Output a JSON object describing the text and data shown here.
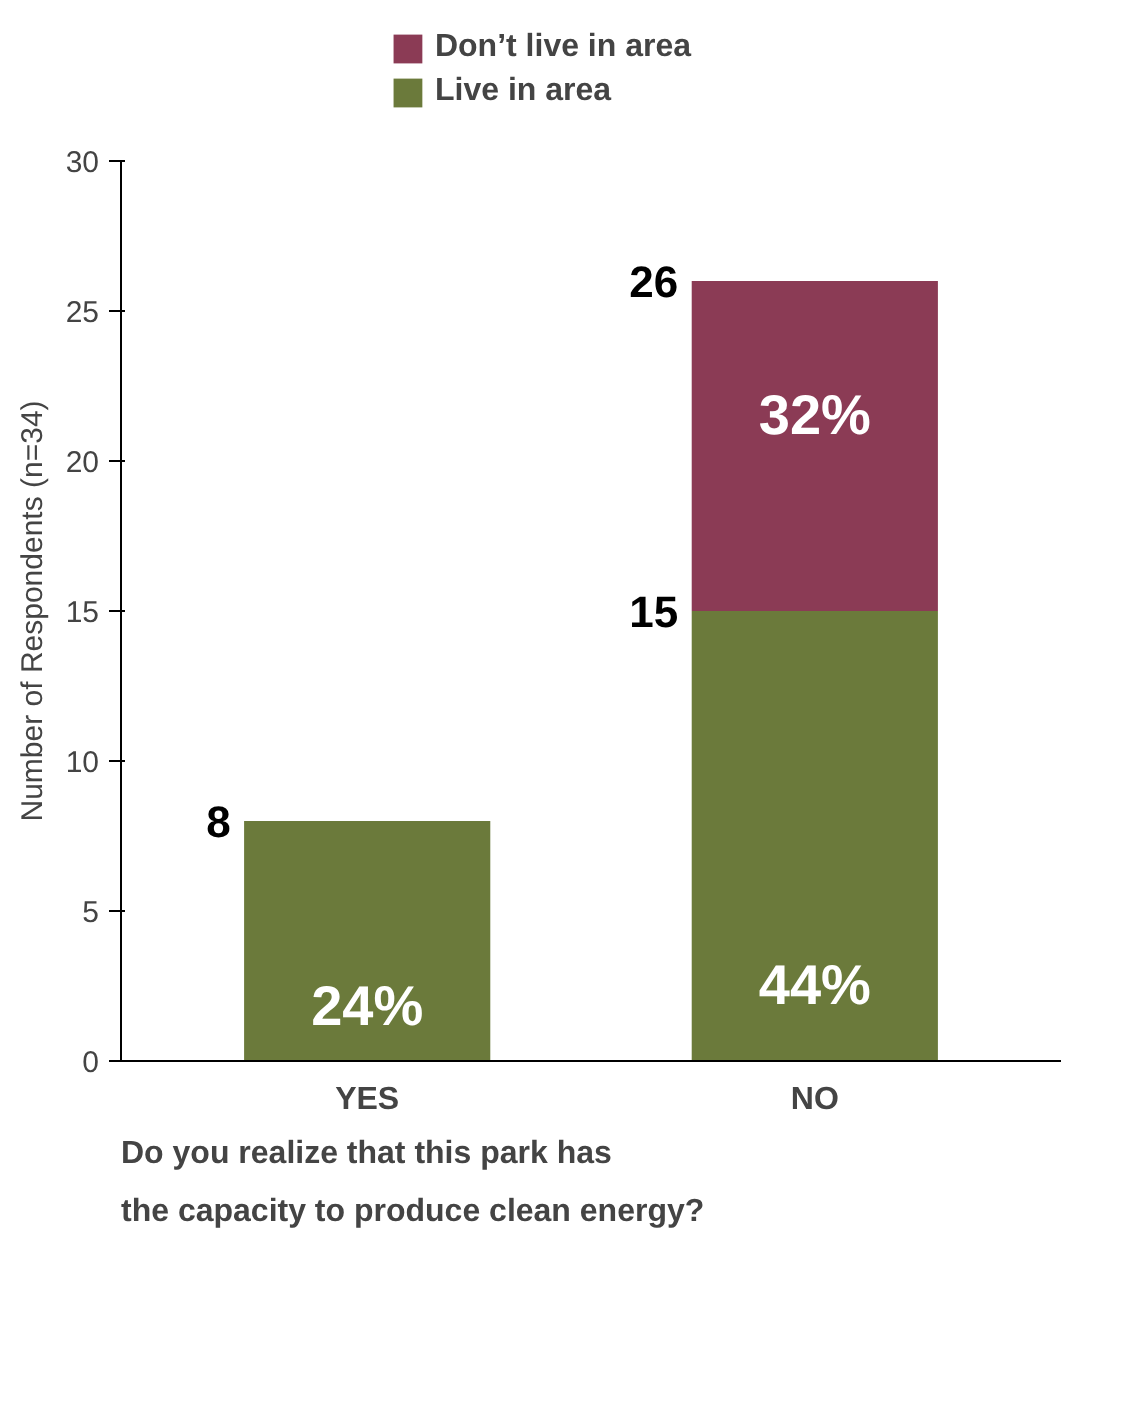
{
  "chart_data": {
    "type": "bar",
    "stacked": true,
    "categories": [
      "YES",
      "NO"
    ],
    "series": [
      {
        "name": "Live in area",
        "color": "#6b7a3b",
        "values": [
          8,
          15
        ],
        "value_labels": [
          "8",
          "15"
        ]
      },
      {
        "name": "Don’t live in area",
        "color": "#8b3b55",
        "values": [
          null,
          11
        ]
      }
    ],
    "totals": [
      null,
      "26"
    ],
    "annotations": [
      "24%",
      "44%",
      "32%"
    ],
    "ylabel": "Number of Respondents (n=34)",
    "xlabel": "Do you realize that this park has\nthe capacity to produce clean energy?",
    "ylim": [
      0,
      30
    ],
    "yticks": [
      0,
      5,
      10,
      15,
      20,
      25,
      30
    ],
    "grid": false,
    "legend": "top"
  }
}
